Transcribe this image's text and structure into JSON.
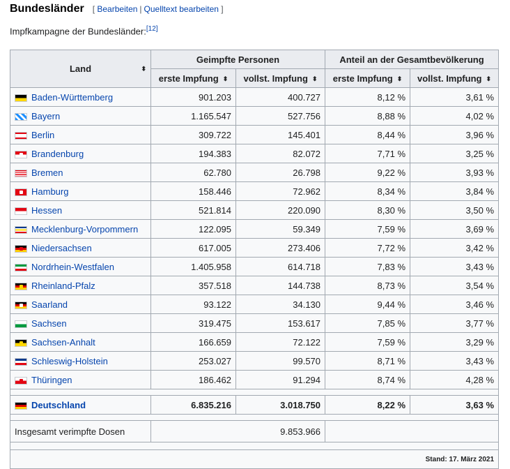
{
  "section": {
    "title": "Bundesländer",
    "edit_label": "Bearbeiten",
    "source_edit_label": "Quelltext bearbeiten",
    "open_bracket": "[",
    "close_bracket": "]",
    "separator": "|"
  },
  "intro": {
    "text": "Impfkampagne der Bundesländer:",
    "ref": "[12]"
  },
  "table": {
    "headers": {
      "land": "Land",
      "geimpfte": "Geimpfte Personen",
      "anteil": "Anteil an der Gesamtbevölkerung",
      "erste1": "erste Impfung",
      "vollst1": "vollst. Impfung",
      "erste2": "erste Impfung",
      "vollst2": "vollst. Impfung"
    },
    "sort_icon": "⬍",
    "rows": [
      {
        "land": "Baden-Württemberg",
        "flag": "bw",
        "erste": "901.203",
        "vollst": "400.727",
        "erste_pct": "8,12 %",
        "vollst_pct": "3,61 %"
      },
      {
        "land": "Bayern",
        "flag": "by",
        "erste": "1.165.547",
        "vollst": "527.756",
        "erste_pct": "8,88 %",
        "vollst_pct": "4,02 %"
      },
      {
        "land": "Berlin",
        "flag": "be",
        "erste": "309.722",
        "vollst": "145.401",
        "erste_pct": "8,44 %",
        "vollst_pct": "3,96 %"
      },
      {
        "land": "Brandenburg",
        "flag": "bb",
        "erste": "194.383",
        "vollst": "82.072",
        "erste_pct": "7,71 %",
        "vollst_pct": "3,25 %"
      },
      {
        "land": "Bremen",
        "flag": "hb",
        "erste": "62.780",
        "vollst": "26.798",
        "erste_pct": "9,22 %",
        "vollst_pct": "3,93 %"
      },
      {
        "land": "Hamburg",
        "flag": "hh",
        "erste": "158.446",
        "vollst": "72.962",
        "erste_pct": "8,34 %",
        "vollst_pct": "3,84 %"
      },
      {
        "land": "Hessen",
        "flag": "he",
        "erste": "521.814",
        "vollst": "220.090",
        "erste_pct": "8,30 %",
        "vollst_pct": "3,50 %"
      },
      {
        "land": "Mecklenburg-Vorpommern",
        "flag": "mv",
        "erste": "122.095",
        "vollst": "59.349",
        "erste_pct": "7,59 %",
        "vollst_pct": "3,69 %"
      },
      {
        "land": "Niedersachsen",
        "flag": "ni",
        "erste": "617.005",
        "vollst": "273.406",
        "erste_pct": "7,72 %",
        "vollst_pct": "3,42 %"
      },
      {
        "land": "Nordrhein-Westfalen",
        "flag": "nw",
        "erste": "1.405.958",
        "vollst": "614.718",
        "erste_pct": "7,83 %",
        "vollst_pct": "3,43 %"
      },
      {
        "land": "Rheinland-Pfalz",
        "flag": "rp",
        "erste": "357.518",
        "vollst": "144.738",
        "erste_pct": "8,73 %",
        "vollst_pct": "3,54 %"
      },
      {
        "land": "Saarland",
        "flag": "sl",
        "erste": "93.122",
        "vollst": "34.130",
        "erste_pct": "9,44 %",
        "vollst_pct": "3,46 %"
      },
      {
        "land": "Sachsen",
        "flag": "sn",
        "erste": "319.475",
        "vollst": "153.617",
        "erste_pct": "7,85 %",
        "vollst_pct": "3,77 %"
      },
      {
        "land": "Sachsen-Anhalt",
        "flag": "st",
        "erste": "166.659",
        "vollst": "72.122",
        "erste_pct": "7,59 %",
        "vollst_pct": "3,29 %"
      },
      {
        "land": "Schleswig-Holstein",
        "flag": "sh",
        "erste": "253.027",
        "vollst": "99.570",
        "erste_pct": "8,71 %",
        "vollst_pct": "3,43 %"
      },
      {
        "land": "Thüringen",
        "flag": "th",
        "erste": "186.462",
        "vollst": "91.294",
        "erste_pct": "8,74 %",
        "vollst_pct": "4,28 %"
      }
    ],
    "total": {
      "land": "Deutschland",
      "flag": "de",
      "erste": "6.835.216",
      "vollst": "3.018.750",
      "erste_pct": "8,22 %",
      "vollst_pct": "3,63 %"
    },
    "doses": {
      "label": "Insgesamt verimpfte Dosen",
      "value": "9.853.966"
    },
    "stand": "Stand: 17. März 2021"
  },
  "colors": {
    "link": "#0645ad",
    "header_bg": "#eaecf0",
    "table_bg": "#f8f9fa",
    "border": "#a2a9b1"
  }
}
